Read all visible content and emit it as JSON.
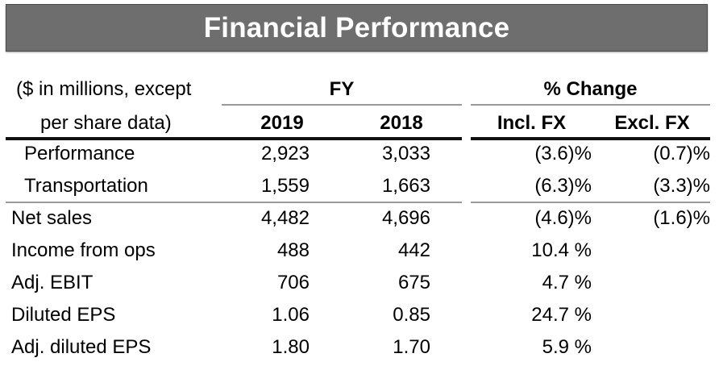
{
  "title": "Financial Performance",
  "header": {
    "row_label_1": "($ in millions, except",
    "row_label_2": "per share data)",
    "fy_label": "FY",
    "pct_label": "% Change",
    "col_2019": "2019",
    "col_2018": "2018",
    "col_incl": "Incl. FX",
    "col_excl": "Excl. FX"
  },
  "rows": [
    {
      "label": "Performance",
      "v2019": "2,923",
      "v2018": "3,033",
      "incl": "(3.6)%",
      "excl": "(0.7)%"
    },
    {
      "label": "Transportation",
      "v2019": "1,559",
      "v2018": "1,663",
      "incl": "(6.3)%",
      "excl": "(3.3)%"
    },
    {
      "label": "Net sales",
      "v2019": "4,482",
      "v2018": "4,696",
      "incl": "(4.6)%",
      "excl": "(1.6)%"
    },
    {
      "label": "Income from ops",
      "v2019": "488",
      "v2018": "442",
      "incl": "10.4 %",
      "excl": ""
    },
    {
      "label": "Adj. EBIT",
      "v2019": "706",
      "v2018": "675",
      "incl": "4.7 %",
      "excl": ""
    },
    {
      "label": "Diluted EPS",
      "v2019": "1.06",
      "v2018": "0.85",
      "incl": "24.7 %",
      "excl": ""
    },
    {
      "label": "Adj. diluted EPS",
      "v2019": "1.80",
      "v2018": "1.70",
      "incl": "5.9 %",
      "excl": ""
    }
  ]
}
